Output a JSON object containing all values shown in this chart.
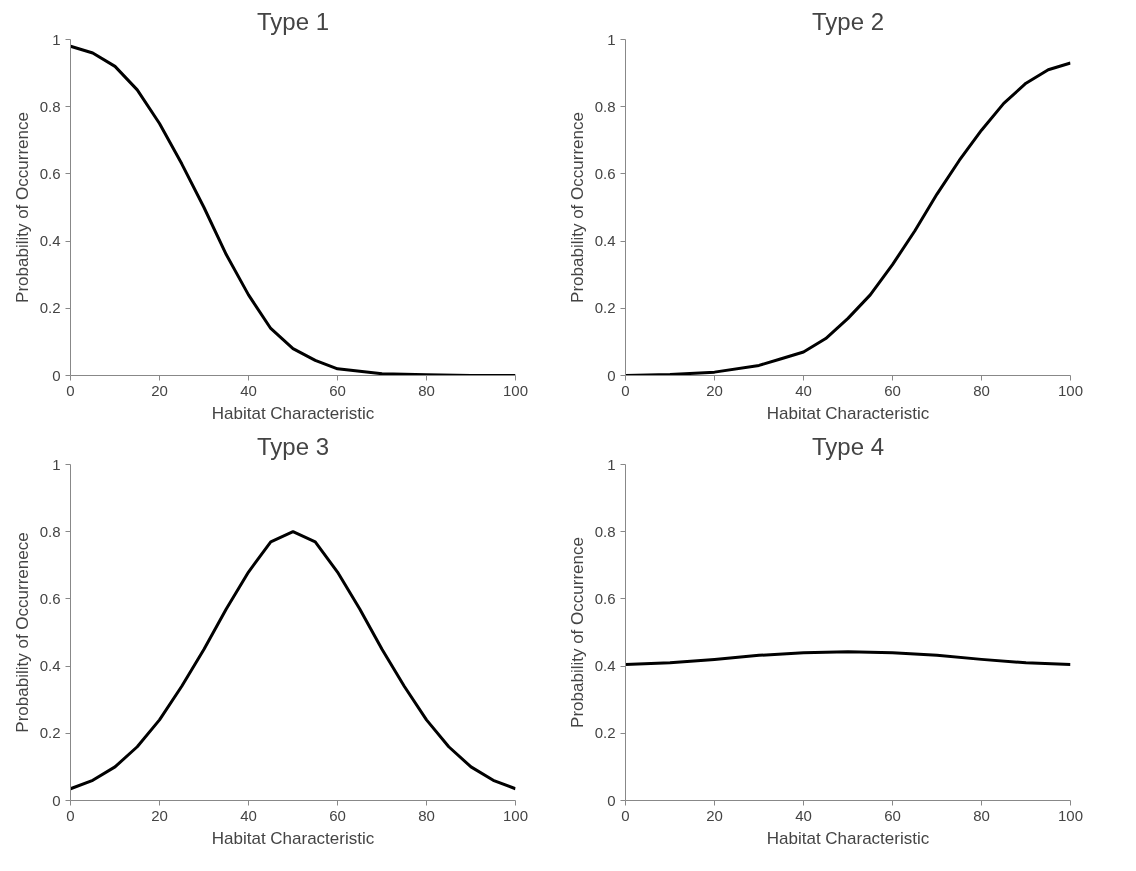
{
  "chart_data": [
    {
      "type": "line",
      "title": "Type 1",
      "xlabel": "Habitat Characteristic",
      "ylabel": "Probability of Occurrence",
      "xlim": [
        0,
        100
      ],
      "ylim": [
        0,
        1
      ],
      "xticks": [
        0,
        20,
        40,
        60,
        80,
        100
      ],
      "yticks": [
        0,
        0.2,
        0.4,
        0.6,
        0.8,
        1
      ],
      "grid": false,
      "marker": "none",
      "line_style": "solid",
      "series": [
        {
          "color": "#000000",
          "x": [
            0,
            5,
            10,
            15,
            20,
            25,
            30,
            35,
            40,
            45,
            50,
            55,
            60,
            70,
            80,
            90,
            100
          ],
          "values": [
            0.98,
            0.96,
            0.92,
            0.85,
            0.75,
            0.63,
            0.5,
            0.36,
            0.24,
            0.14,
            0.08,
            0.045,
            0.02,
            0.005,
            0.002,
            0,
            0
          ]
        }
      ]
    },
    {
      "type": "line",
      "title": "Type 2",
      "xlabel": "Habitat Characteristic",
      "ylabel": "Probability of Occurrence",
      "xlim": [
        0,
        100
      ],
      "ylim": [
        0,
        1
      ],
      "xticks": [
        0,
        20,
        40,
        60,
        80,
        100
      ],
      "yticks": [
        0,
        0.2,
        0.4,
        0.6,
        0.8,
        1
      ],
      "grid": false,
      "marker": "none",
      "line_style": "solid",
      "series": [
        {
          "color": "#000000",
          "x": [
            0,
            10,
            20,
            30,
            35,
            40,
            45,
            50,
            55,
            60,
            65,
            70,
            75,
            80,
            85,
            90,
            95,
            100
          ],
          "values": [
            0,
            0.003,
            0.01,
            0.03,
            0.05,
            0.07,
            0.11,
            0.17,
            0.24,
            0.33,
            0.43,
            0.54,
            0.64,
            0.73,
            0.81,
            0.87,
            0.91,
            0.93
          ]
        }
      ]
    },
    {
      "type": "line",
      "title": "Type 3",
      "xlabel": "Habitat Characteristic",
      "ylabel": "Probability of Occurrenece",
      "xlim": [
        0,
        100
      ],
      "ylim": [
        0,
        1
      ],
      "xticks": [
        0,
        20,
        40,
        60,
        80,
        100
      ],
      "yticks": [
        0,
        0.2,
        0.4,
        0.6,
        0.8,
        1
      ],
      "grid": false,
      "marker": "none",
      "line_style": "solid",
      "series": [
        {
          "color": "#000000",
          "x": [
            0,
            5,
            10,
            15,
            20,
            25,
            30,
            35,
            40,
            45,
            50,
            55,
            60,
            65,
            70,
            75,
            80,
            85,
            90,
            95,
            100
          ],
          "values": [
            0.035,
            0.06,
            0.1,
            0.16,
            0.24,
            0.34,
            0.45,
            0.57,
            0.68,
            0.77,
            0.8,
            0.77,
            0.68,
            0.57,
            0.45,
            0.34,
            0.24,
            0.16,
            0.1,
            0.06,
            0.035
          ]
        }
      ]
    },
    {
      "type": "line",
      "title": "Type 4",
      "xlabel": "Habitat Characteristic",
      "ylabel": "Probability of Occurrence",
      "xlim": [
        0,
        100
      ],
      "ylim": [
        0,
        1
      ],
      "xticks": [
        0,
        20,
        40,
        60,
        80,
        100
      ],
      "yticks": [
        0,
        0.2,
        0.4,
        0.6,
        0.8,
        1
      ],
      "grid": false,
      "marker": "none",
      "line_style": "solid",
      "series": [
        {
          "color": "#000000",
          "x": [
            0,
            10,
            20,
            30,
            40,
            50,
            60,
            70,
            80,
            90,
            100
          ],
          "values": [
            0.405,
            0.41,
            0.42,
            0.432,
            0.44,
            0.443,
            0.44,
            0.432,
            0.42,
            0.41,
            0.405
          ]
        }
      ]
    }
  ]
}
